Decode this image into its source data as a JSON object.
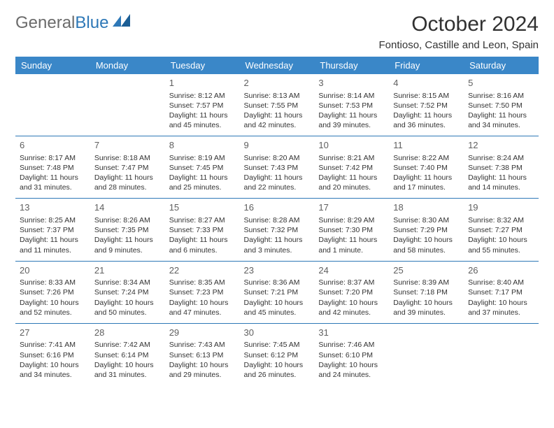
{
  "brand": {
    "part1": "General",
    "part2": "Blue"
  },
  "title": "October 2024",
  "location": "Fontioso, Castille and Leon, Spain",
  "colors": {
    "header_bg": "#3a87c8",
    "header_text": "#ffffff",
    "rule": "#2e78b7",
    "text": "#333333",
    "daynum": "#606060",
    "logo_gray": "#6b6b6b",
    "logo_blue": "#2e78b7",
    "background": "#ffffff"
  },
  "typography": {
    "title_size_pt": 22,
    "location_size_pt": 11,
    "header_row_size_pt": 10,
    "body_size_pt": 8,
    "daynum_size_pt": 10,
    "font_family": "Arial"
  },
  "day_headers": [
    "Sunday",
    "Monday",
    "Tuesday",
    "Wednesday",
    "Thursday",
    "Friday",
    "Saturday"
  ],
  "weeks": [
    [
      null,
      null,
      {
        "n": "1",
        "sr": "Sunrise: 8:12 AM",
        "ss": "Sunset: 7:57 PM",
        "d1": "Daylight: 11 hours",
        "d2": "and 45 minutes."
      },
      {
        "n": "2",
        "sr": "Sunrise: 8:13 AM",
        "ss": "Sunset: 7:55 PM",
        "d1": "Daylight: 11 hours",
        "d2": "and 42 minutes."
      },
      {
        "n": "3",
        "sr": "Sunrise: 8:14 AM",
        "ss": "Sunset: 7:53 PM",
        "d1": "Daylight: 11 hours",
        "d2": "and 39 minutes."
      },
      {
        "n": "4",
        "sr": "Sunrise: 8:15 AM",
        "ss": "Sunset: 7:52 PM",
        "d1": "Daylight: 11 hours",
        "d2": "and 36 minutes."
      },
      {
        "n": "5",
        "sr": "Sunrise: 8:16 AM",
        "ss": "Sunset: 7:50 PM",
        "d1": "Daylight: 11 hours",
        "d2": "and 34 minutes."
      }
    ],
    [
      {
        "n": "6",
        "sr": "Sunrise: 8:17 AM",
        "ss": "Sunset: 7:48 PM",
        "d1": "Daylight: 11 hours",
        "d2": "and 31 minutes."
      },
      {
        "n": "7",
        "sr": "Sunrise: 8:18 AM",
        "ss": "Sunset: 7:47 PM",
        "d1": "Daylight: 11 hours",
        "d2": "and 28 minutes."
      },
      {
        "n": "8",
        "sr": "Sunrise: 8:19 AM",
        "ss": "Sunset: 7:45 PM",
        "d1": "Daylight: 11 hours",
        "d2": "and 25 minutes."
      },
      {
        "n": "9",
        "sr": "Sunrise: 8:20 AM",
        "ss": "Sunset: 7:43 PM",
        "d1": "Daylight: 11 hours",
        "d2": "and 22 minutes."
      },
      {
        "n": "10",
        "sr": "Sunrise: 8:21 AM",
        "ss": "Sunset: 7:42 PM",
        "d1": "Daylight: 11 hours",
        "d2": "and 20 minutes."
      },
      {
        "n": "11",
        "sr": "Sunrise: 8:22 AM",
        "ss": "Sunset: 7:40 PM",
        "d1": "Daylight: 11 hours",
        "d2": "and 17 minutes."
      },
      {
        "n": "12",
        "sr": "Sunrise: 8:24 AM",
        "ss": "Sunset: 7:38 PM",
        "d1": "Daylight: 11 hours",
        "d2": "and 14 minutes."
      }
    ],
    [
      {
        "n": "13",
        "sr": "Sunrise: 8:25 AM",
        "ss": "Sunset: 7:37 PM",
        "d1": "Daylight: 11 hours",
        "d2": "and 11 minutes."
      },
      {
        "n": "14",
        "sr": "Sunrise: 8:26 AM",
        "ss": "Sunset: 7:35 PM",
        "d1": "Daylight: 11 hours",
        "d2": "and 9 minutes."
      },
      {
        "n": "15",
        "sr": "Sunrise: 8:27 AM",
        "ss": "Sunset: 7:33 PM",
        "d1": "Daylight: 11 hours",
        "d2": "and 6 minutes."
      },
      {
        "n": "16",
        "sr": "Sunrise: 8:28 AM",
        "ss": "Sunset: 7:32 PM",
        "d1": "Daylight: 11 hours",
        "d2": "and 3 minutes."
      },
      {
        "n": "17",
        "sr": "Sunrise: 8:29 AM",
        "ss": "Sunset: 7:30 PM",
        "d1": "Daylight: 11 hours",
        "d2": "and 1 minute."
      },
      {
        "n": "18",
        "sr": "Sunrise: 8:30 AM",
        "ss": "Sunset: 7:29 PM",
        "d1": "Daylight: 10 hours",
        "d2": "and 58 minutes."
      },
      {
        "n": "19",
        "sr": "Sunrise: 8:32 AM",
        "ss": "Sunset: 7:27 PM",
        "d1": "Daylight: 10 hours",
        "d2": "and 55 minutes."
      }
    ],
    [
      {
        "n": "20",
        "sr": "Sunrise: 8:33 AM",
        "ss": "Sunset: 7:26 PM",
        "d1": "Daylight: 10 hours",
        "d2": "and 52 minutes."
      },
      {
        "n": "21",
        "sr": "Sunrise: 8:34 AM",
        "ss": "Sunset: 7:24 PM",
        "d1": "Daylight: 10 hours",
        "d2": "and 50 minutes."
      },
      {
        "n": "22",
        "sr": "Sunrise: 8:35 AM",
        "ss": "Sunset: 7:23 PM",
        "d1": "Daylight: 10 hours",
        "d2": "and 47 minutes."
      },
      {
        "n": "23",
        "sr": "Sunrise: 8:36 AM",
        "ss": "Sunset: 7:21 PM",
        "d1": "Daylight: 10 hours",
        "d2": "and 45 minutes."
      },
      {
        "n": "24",
        "sr": "Sunrise: 8:37 AM",
        "ss": "Sunset: 7:20 PM",
        "d1": "Daylight: 10 hours",
        "d2": "and 42 minutes."
      },
      {
        "n": "25",
        "sr": "Sunrise: 8:39 AM",
        "ss": "Sunset: 7:18 PM",
        "d1": "Daylight: 10 hours",
        "d2": "and 39 minutes."
      },
      {
        "n": "26",
        "sr": "Sunrise: 8:40 AM",
        "ss": "Sunset: 7:17 PM",
        "d1": "Daylight: 10 hours",
        "d2": "and 37 minutes."
      }
    ],
    [
      {
        "n": "27",
        "sr": "Sunrise: 7:41 AM",
        "ss": "Sunset: 6:16 PM",
        "d1": "Daylight: 10 hours",
        "d2": "and 34 minutes."
      },
      {
        "n": "28",
        "sr": "Sunrise: 7:42 AM",
        "ss": "Sunset: 6:14 PM",
        "d1": "Daylight: 10 hours",
        "d2": "and 31 minutes."
      },
      {
        "n": "29",
        "sr": "Sunrise: 7:43 AM",
        "ss": "Sunset: 6:13 PM",
        "d1": "Daylight: 10 hours",
        "d2": "and 29 minutes."
      },
      {
        "n": "30",
        "sr": "Sunrise: 7:45 AM",
        "ss": "Sunset: 6:12 PM",
        "d1": "Daylight: 10 hours",
        "d2": "and 26 minutes."
      },
      {
        "n": "31",
        "sr": "Sunrise: 7:46 AM",
        "ss": "Sunset: 6:10 PM",
        "d1": "Daylight: 10 hours",
        "d2": "and 24 minutes."
      },
      null,
      null
    ]
  ]
}
